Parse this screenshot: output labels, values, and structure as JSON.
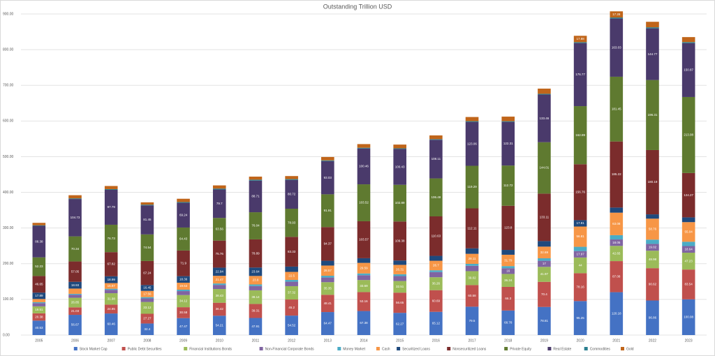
{
  "chart_data": {
    "type": "stacked_bar",
    "title": "Outstanding Trillion USD",
    "categories": [
      "2005",
      "2006",
      "2007",
      "2008",
      "2009",
      "2010",
      "2011",
      "2012",
      "2013",
      "2014",
      "2015",
      "2016",
      "2017",
      "2018",
      "2019",
      "2020",
      "2021",
      "2022",
      "2023"
    ],
    "ylim": [
      0,
      900
    ],
    "yticks": [
      {
        "value": 0,
        "label": "0.00"
      },
      {
        "value": 100,
        "label": "100.00"
      },
      {
        "value": 200,
        "label": "200.00"
      },
      {
        "value": 300,
        "label": "300.00"
      },
      {
        "value": 400,
        "label": "400.00"
      },
      {
        "value": 500,
        "label": "500.00"
      },
      {
        "value": 600,
        "label": "600.00"
      },
      {
        "value": 700,
        "label": "700.00"
      },
      {
        "value": 800,
        "label": "800.00"
      },
      {
        "value": 900,
        "label": "900.00"
      }
    ],
    "grid": true,
    "legend": "bottom",
    "series": [
      {
        "name": "Stock Market Cap",
        "color": "#4472c4",
        "values": [
          40.53,
          56.67,
          60.46,
          32.4,
          47.47,
          54.21,
          47.91,
          54.52,
          64.47,
          67.38,
          62.27,
          65.12,
          79.5,
          68.78,
          78.81,
          95.25,
          120.18,
          96.86,
          100.08
        ]
      },
      {
        "name": "Public Debt Securities",
        "color": "#c0504d",
        "values": [
          20.38,
          21.03,
          24.85,
          27.27,
          30.58,
          36.42,
          39.31,
          45.2,
          48.41,
          53.16,
          56.65,
          60.69,
          60.58,
          66.3,
          70.4,
          78.16,
          87.08,
          90.62,
          83.54
        ]
      },
      {
        "name": "Financial Institutions Bonds",
        "color": "#9bbb59",
        "values": [
          19.51,
          26.85,
          31.98,
          33.12,
          34.12,
          38.43,
          38.14,
          37.32,
          35.35,
          33.69,
          32.51,
          36.26,
          39.02,
          36.24,
          41.97,
          44.0,
          42.65,
          48.98,
          47.23
        ]
      },
      {
        "name": "Non-Financial Corporate Bonds",
        "color": "#8064a2",
        "values": [
          9.11,
          8.5,
          9.5,
          10,
          11,
          11.5,
          12,
          12.5,
          13,
          13.5,
          14,
          14.5,
          15,
          16,
          17,
          17.97,
          18.05,
          19.02,
          18.64
        ]
      },
      {
        "name": "Money Market",
        "color": "#4bacc6",
        "values": [
          2.5,
          2.5,
          3,
          3.5,
          4,
          4,
          4.5,
          5,
          5,
          5,
          5,
          5,
          5.5,
          6,
          7,
          12,
          12,
          12,
          12
        ]
      },
      {
        "name": "Cash",
        "color": "#f79646",
        "values": [
          8.99,
          14.73,
          15.87,
          17.56,
          19.53,
          21.47,
          23.8,
          22.5,
          28.57,
          29.59,
          26.31,
          26.7,
          28.11,
          31.79,
          32.69,
          56.81,
          63.08,
          58.76,
          55.04
        ]
      },
      {
        "name": "Securitized Loans",
        "color": "#1f497d",
        "values": [
          17.89,
          18.93,
          18.99,
          16.45,
          18.36,
          22.94,
          23.64,
          14.85,
          13.42,
          13.09,
          12.17,
          13.7,
          15.31,
          13.52,
          15.51,
          17.81,
          14.34,
          12.11,
          13.36
        ]
      },
      {
        "name": "Nonsecuritized Loans",
        "color": "#7b2c2c",
        "values": [
          46.65,
          57.05,
          67.82,
          67.24,
          71.9,
          75.76,
          78.89,
          83.33,
          94.37,
          103.57,
          109.38,
          110.63,
          112.11,
          123.8,
          133.11,
          156.76,
          185.22,
          180.19,
          124.27
        ]
      },
      {
        "name": "Private Equity",
        "color": "#5f7a30",
        "values": [
          52.23,
          70.34,
          76.73,
          74.54,
          64.43,
          63.56,
          76.04,
          78.93,
          91.91,
          103.52,
          102.89,
          106.48,
          119.29,
          112.72,
          144.01,
          162.89,
          181.45,
          196.31,
          213.08
        ]
      },
      {
        "name": "Real Estate",
        "color": "#4a3a6b",
        "values": [
          88.38,
          104.73,
          97.79,
          81.45,
          69.24,
          79.7,
          88.71,
          80.72,
          93.03,
          100.46,
          100.43,
          108.11,
          123.06,
          122.31,
          133.46,
          176.77,
          163.03,
          144.77,
          150.87
        ]
      },
      {
        "name": "Commodities",
        "color": "#2a7f8f",
        "values": [
          1.5,
          1.8,
          2,
          2,
          2.2,
          2.5,
          2.6,
          2.3,
          2.1,
          2.0,
          1.8,
          1.9,
          2.1,
          2.0,
          2.2,
          2.5,
          3.0,
          3.0,
          3.0
        ]
      },
      {
        "name": "Gold",
        "color": "#c0651a",
        "values": [
          6.83,
          8.86,
          8.83,
          6.5,
          9.23,
          9.0,
          8.55,
          8.5,
          9.46,
          10.3,
          10.5,
          10.5,
          11.61,
          12.8,
          14.61,
          17.88,
          17.28,
          15.45,
          14.06
        ]
      }
    ]
  }
}
